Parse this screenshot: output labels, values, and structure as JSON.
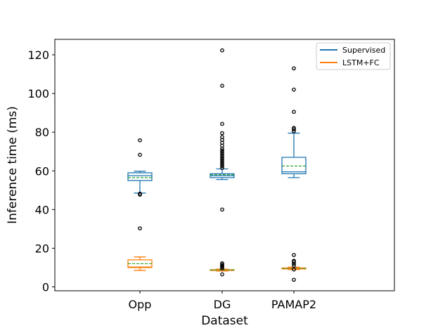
{
  "chart_data": {
    "type": "box",
    "xlabel": "Dataset",
    "ylabel": "Inference time (ms)",
    "categories": [
      "Opp",
      "DG",
      "PAMAP2"
    ],
    "ylim": [
      -2,
      128
    ],
    "yticks": [
      0,
      20,
      40,
      60,
      80,
      100,
      120
    ],
    "grid": false,
    "legend_position": "top-right",
    "series": [
      {
        "name": "Supervised",
        "color": "#1f77b4",
        "boxes": [
          {
            "category": "Opp",
            "whisker_low": 48.5,
            "q1": 55,
            "median": 57.5,
            "mean": 56.5,
            "q3": 59,
            "whisker_high": 59.8,
            "outliers": [
              30.3,
              47.7,
              48.2,
              68.3,
              75.8
            ]
          },
          {
            "category": "DG",
            "whisker_low": 55.5,
            "q1": 56.5,
            "median": 57.5,
            "mean": 58,
            "q3": 58.5,
            "whisker_high": 61,
            "outliers": [
              40,
              61.5,
              62.5,
              63.5,
              64.5,
              65.5,
              66.5,
              67.5,
              68.5,
              69.5,
              70.5,
              71.5,
              73,
              74.5,
              76,
              77.5,
              79.5,
              84.3,
              104,
              122.3
            ]
          },
          {
            "category": "PAMAP2",
            "whisker_low": 56.5,
            "q1": 58.5,
            "median": 59.5,
            "mean": 62.5,
            "q3": 67,
            "whisker_high": 79.5,
            "outliers": [
              16.5,
              80.5,
              81.5,
              82.2,
              90.5,
              102,
              113
            ]
          }
        ]
      },
      {
        "name": "LSTM+FC",
        "color": "#ff7f0e",
        "boxes": [
          {
            "category": "Opp",
            "whisker_low": 8.5,
            "q1": 10,
            "median": 10.3,
            "mean": 12,
            "q3": 14,
            "whisker_high": 15.5,
            "outliers": []
          },
          {
            "category": "DG",
            "whisker_low": 8.2,
            "q1": 8.5,
            "median": 8.7,
            "mean": 8.8,
            "q3": 8.9,
            "whisker_high": 9.2,
            "outliers": [
              6.5,
              9.6,
              10.3,
              10.9,
              11.5,
              12.2
            ]
          },
          {
            "category": "PAMAP2",
            "whisker_low": 9,
            "q1": 9.3,
            "median": 9.5,
            "mean": 9.6,
            "q3": 9.8,
            "whisker_high": 10.2,
            "outliers": [
              3.7,
              9,
              11,
              12,
              13,
              13.5
            ]
          }
        ]
      }
    ],
    "mean_line_color": "#2ca02c"
  }
}
